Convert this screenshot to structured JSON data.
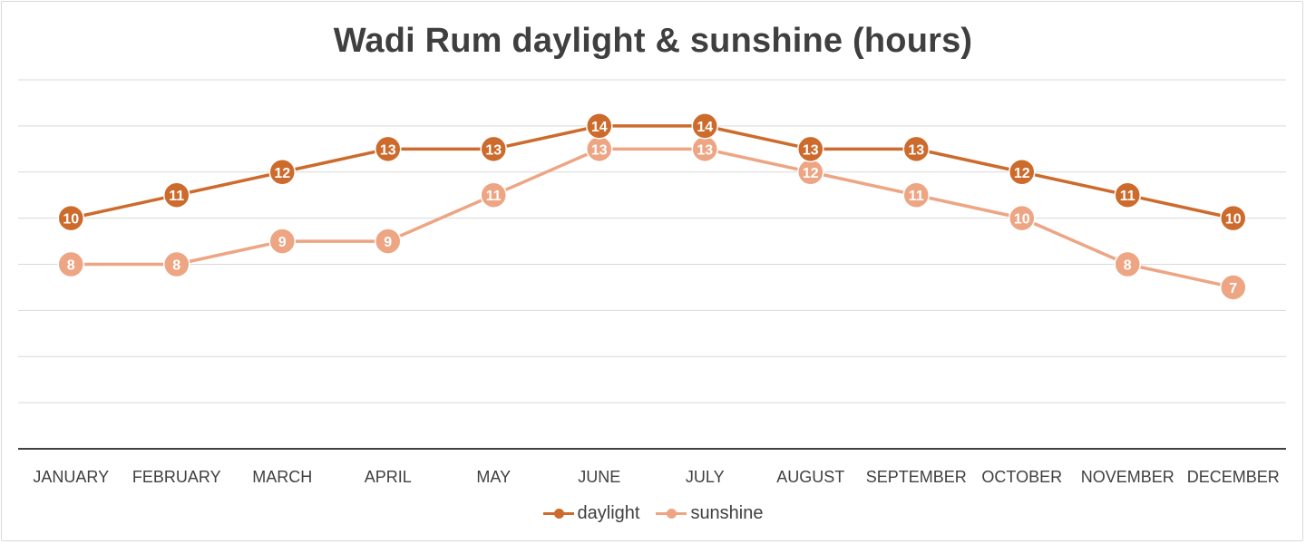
{
  "chart_data": {
    "type": "line",
    "title": "Wadi Rum daylight & sunshine (hours)",
    "categories": [
      "JANUARY",
      "FEBRUARY",
      "MARCH",
      "APRIL",
      "MAY",
      "JUNE",
      "JULY",
      "AUGUST",
      "SEPTEMBER",
      "OCTOBER",
      "NOVEMBER",
      "DECEMBER"
    ],
    "series": [
      {
        "name": "daylight",
        "values": [
          10,
          11,
          12,
          13,
          13,
          14,
          14,
          13,
          13,
          12,
          11,
          10
        ],
        "color": "#cc6b2c"
      },
      {
        "name": "sunshine",
        "values": [
          8,
          8,
          9,
          9,
          11,
          13,
          13,
          12,
          11,
          10,
          8,
          7
        ],
        "color": "#eda584"
      }
    ],
    "ylim": [
      0,
      16
    ],
    "y_grid_step": 2,
    "y_tick_labels_shown": false,
    "grid": true,
    "data_labels": true,
    "legend_position": "bottom"
  }
}
